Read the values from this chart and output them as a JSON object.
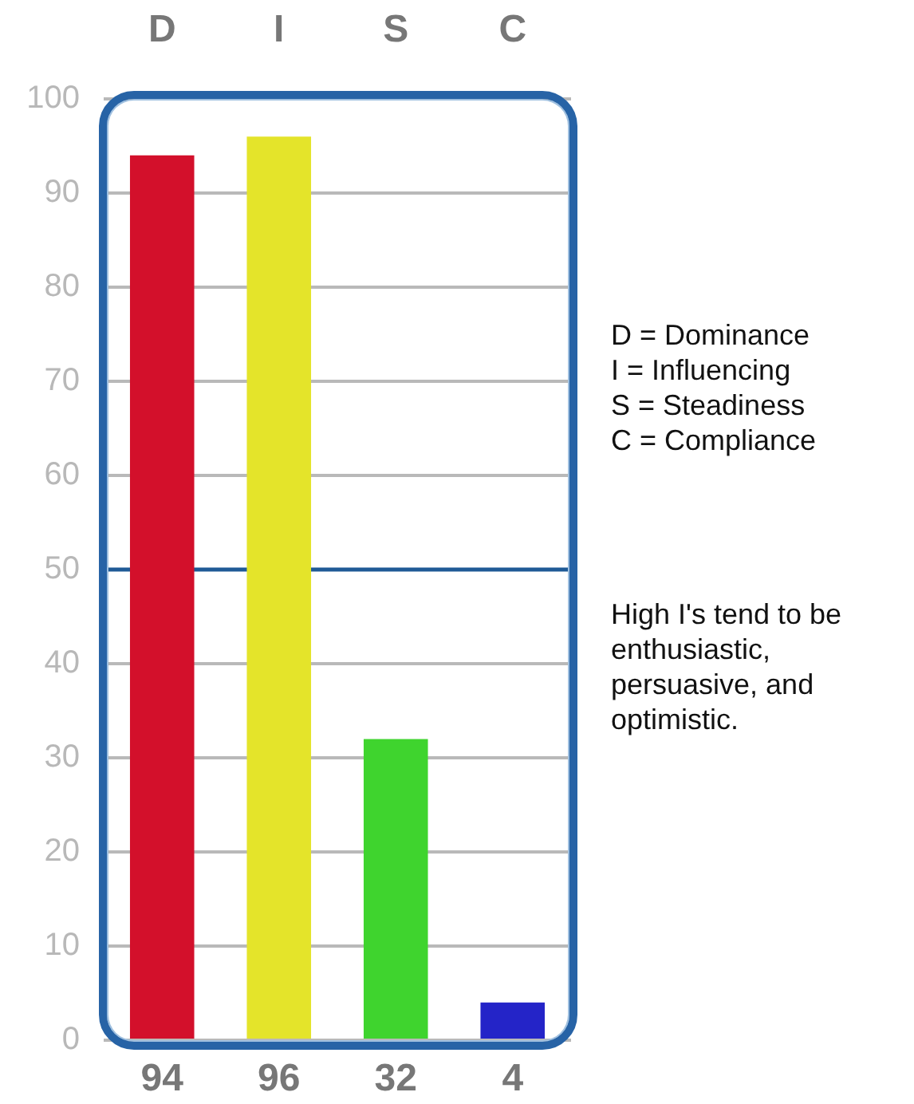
{
  "chart_data": {
    "type": "bar",
    "categories": [
      "D",
      "I",
      "S",
      "C"
    ],
    "values": [
      94,
      96,
      32,
      4
    ],
    "colors": [
      "#d3102b",
      "#e4e42a",
      "#3fd42e",
      "#2424c8"
    ],
    "ylim": [
      0,
      100
    ],
    "yticks": [
      0,
      10,
      20,
      30,
      40,
      50,
      60,
      70,
      80,
      90,
      100
    ],
    "grid": "y",
    "data_labels": true,
    "ref_lines": [
      {
        "axis": "y",
        "value": 50,
        "color": "#1f5a96"
      }
    ],
    "annotations": [
      "D = Dominance",
      "I = Influencing",
      "S = Steadiness",
      "C = Compliance",
      "High I's tend to be enthusiastic, persuasive, and optimistic."
    ]
  }
}
